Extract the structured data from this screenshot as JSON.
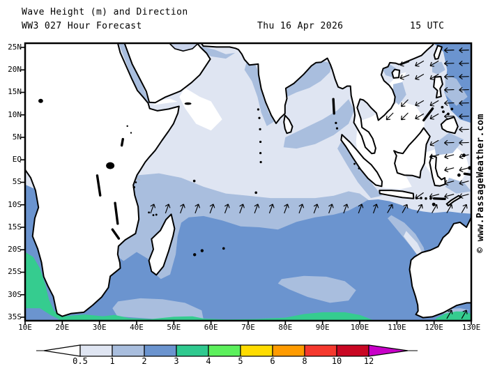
{
  "header": {
    "title": "Wave Height (m) and Direction",
    "forecast": "WW3 027 Hour Forecast",
    "date": "Thu 16 Apr 2026",
    "time": "15 UTC"
  },
  "watermark": "© www.PassageWeather.com",
  "axes": {
    "lat": [
      "25N",
      "20N",
      "15N",
      "10N",
      "5N",
      "EQ",
      "5S",
      "10S",
      "15S",
      "20S",
      "25S",
      "30S",
      "35S"
    ],
    "lat_values": [
      25,
      20,
      15,
      10,
      5,
      0,
      -5,
      -10,
      -15,
      -20,
      -25,
      -30,
      -35
    ],
    "lon": [
      "10E",
      "20E",
      "30E",
      "40E",
      "50E",
      "60E",
      "70E",
      "80E",
      "90E",
      "100E",
      "110E",
      "120E",
      "130E"
    ],
    "lon_values": [
      10,
      20,
      30,
      40,
      50,
      60,
      70,
      80,
      90,
      100,
      110,
      120,
      130
    ]
  },
  "colorbar": {
    "labels": [
      "0.5",
      "1",
      "2",
      "3",
      "4",
      "5",
      "6",
      "8",
      "10",
      "12"
    ],
    "colors": [
      "#dfe5f2",
      "#a9bede",
      "#6b94cf",
      "#2fc98f",
      "#5cf05c",
      "#ffdc00",
      "#ff9b00",
      "#f5392e",
      "#c90723"
    ],
    "under_color": "#ffffff",
    "over_color": "#c800c8"
  },
  "map_colors": {
    "ocean_calm": "#ffffff",
    "ocean_base": "#dfe5f2",
    "ocean_light": "#a9bede",
    "ocean_moderate": "#6b94cf",
    "ocean_rough": "#35cc8f",
    "land": "#ffffff",
    "coastline": "#000000",
    "country_border": "#b3b3b3",
    "arrow": "#000000"
  },
  "chart_data": {
    "type": "map",
    "title": "Wave Height (m) and Direction",
    "units": "m",
    "model": "WW3",
    "forecast_hour": "027",
    "valid": "Thu 16 Apr 2026 15 UTC",
    "scale_boundaries_m": [
      0.5,
      1,
      2,
      3,
      4,
      5,
      6,
      8,
      10,
      12
    ],
    "scale_colors": [
      "#dfe5f2",
      "#a9bede",
      "#6b94cf",
      "#2fc98f",
      "#5cf05c",
      "#ffdc00",
      "#ff9b00",
      "#f5392e",
      "#c90723"
    ],
    "lon_range_deg_east": [
      10,
      130
    ],
    "lat_range_deg": [
      -35.8,
      25.9
    ]
  }
}
